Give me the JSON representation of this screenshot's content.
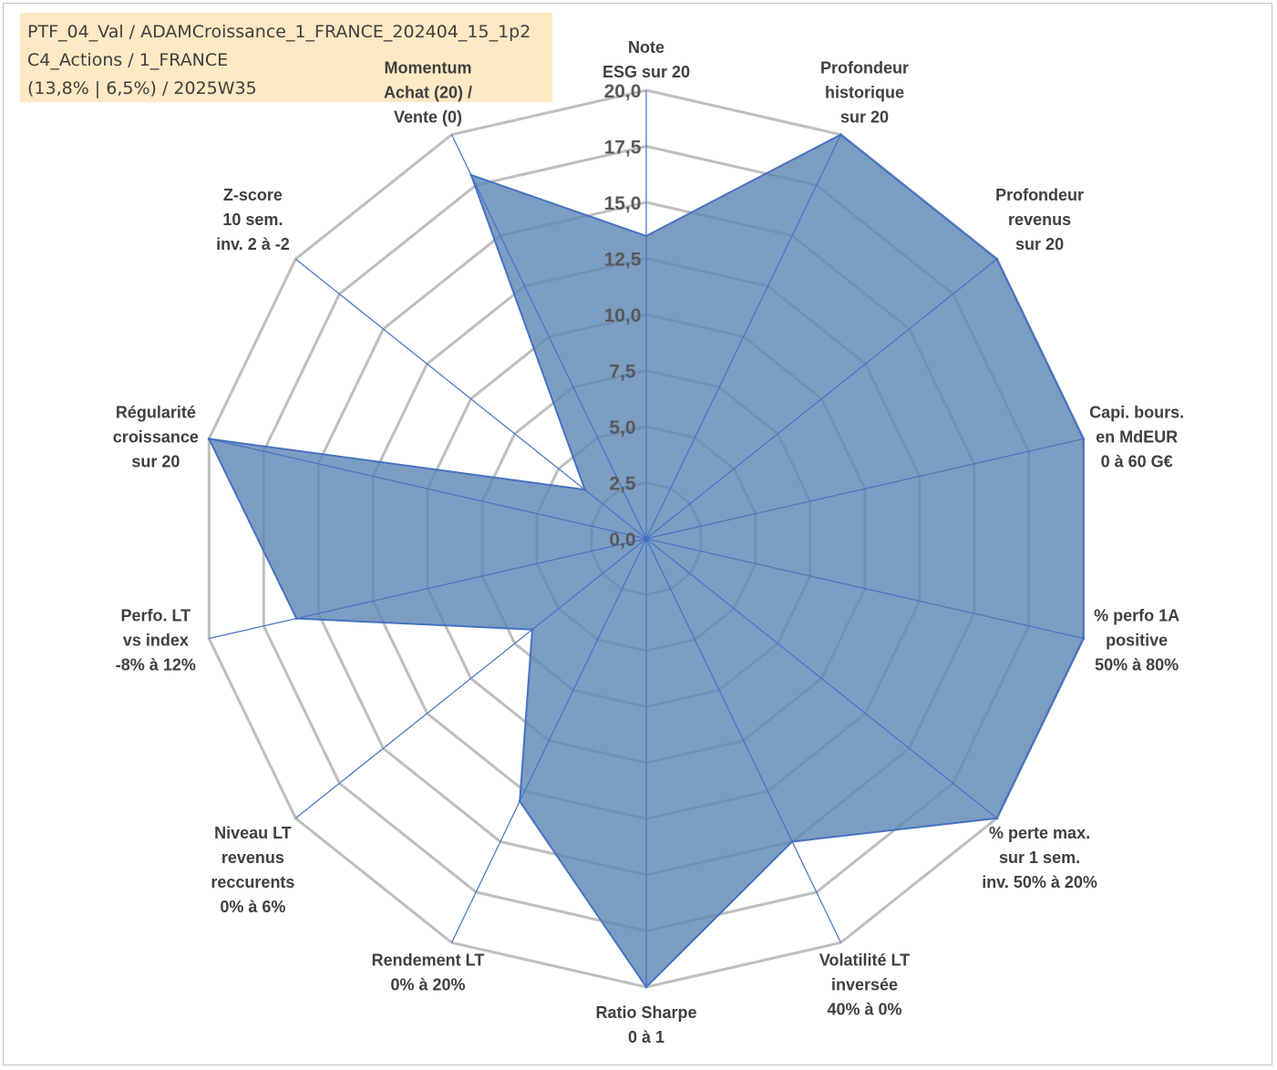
{
  "info_box": {
    "lines": [
      "PTF_04_Val / ADAMCroissance_1_FRANCE_202404_15_1p2",
      "C4_Actions / 1_FRANCE",
      "(13,8% | 6,5%) / 2025W35"
    ],
    "background": "#fde9c3"
  },
  "chart_data": {
    "type": "radar",
    "range": [
      0,
      20
    ],
    "tick_step": 2.5,
    "ticks": [
      "0,0",
      "2,5",
      "5,0",
      "7,5",
      "10,0",
      "12,5",
      "15,0",
      "17,5",
      "20,0"
    ],
    "grid": true,
    "axes": [
      {
        "label": [
          "Note",
          "ESG sur 20"
        ]
      },
      {
        "label": [
          "Profondeur",
          "historique",
          "sur 20"
        ]
      },
      {
        "label": [
          "Profondeur",
          "revenus",
          "sur 20"
        ]
      },
      {
        "label": [
          "Capi. bours.",
          "en MdEUR",
          "0 à 60 G€"
        ]
      },
      {
        "label": [
          "% perfo 1A",
          "positive",
          "50% à 80%"
        ]
      },
      {
        "label": [
          "% perte max.",
          "sur 1 sem.",
          "inv. 50% à 20%"
        ]
      },
      {
        "label": [
          "Volatilité LT",
          "inversée",
          "40% à 0%"
        ]
      },
      {
        "label": [
          "Ratio Sharpe",
          "0 à 1"
        ]
      },
      {
        "label": [
          "Rendement LT",
          "0% à 20%"
        ]
      },
      {
        "label": [
          "Niveau LT",
          "revenus",
          "reccurents",
          "0% à 6%"
        ]
      },
      {
        "label": [
          "Perfo. LT",
          "vs index",
          "-8% à 12%"
        ]
      },
      {
        "label": [
          "Régularité",
          "croissance",
          "sur 20"
        ]
      },
      {
        "label": [
          "Z-score",
          "10 sem.",
          "inv. 2 à -2"
        ]
      },
      {
        "label": [
          "Momentum",
          "Achat (20) /",
          "Vente (0)"
        ],
        "highlight_first_line": true
      }
    ],
    "series": [
      {
        "values": [
          13.5,
          20,
          20,
          20,
          20,
          20,
          15.0,
          20,
          13.0,
          6.5,
          16.0,
          20,
          3.5,
          18.0
        ],
        "fill": "#5b84b3",
        "stroke": "#4472c4"
      }
    ],
    "colors": {
      "grid": "#bfbfbf",
      "spoke": "#4472c4",
      "label": "#404040",
      "momentum_label": "#b8ac8c",
      "tick_label": "#595959"
    }
  }
}
